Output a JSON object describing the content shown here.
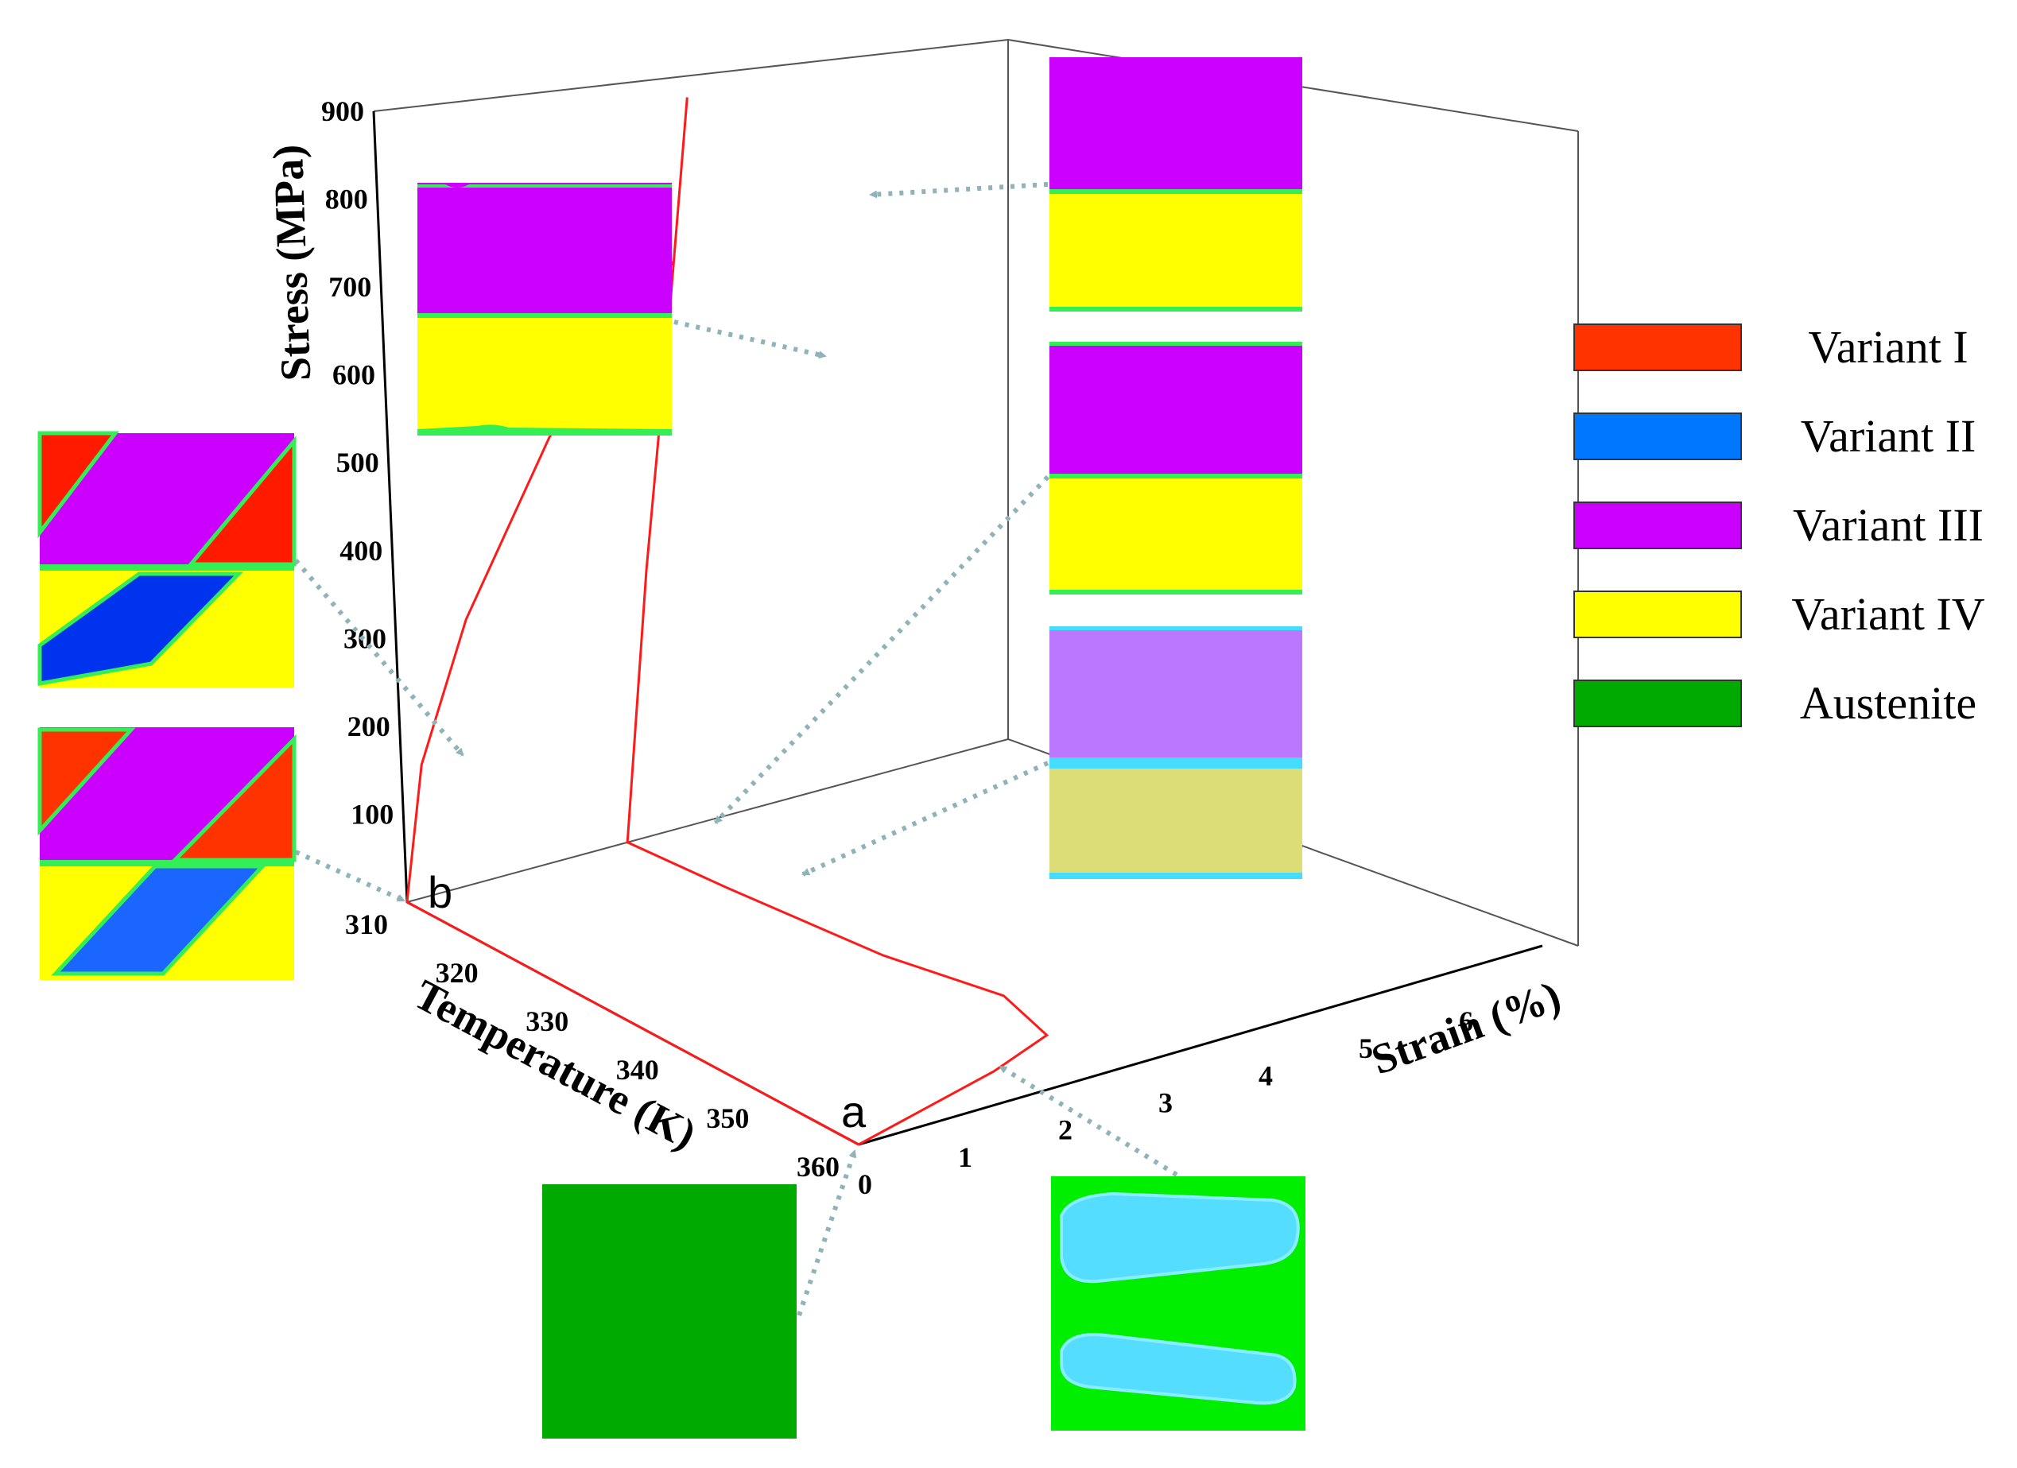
{
  "chart_data": {
    "type": "line",
    "subtype": "3d-line",
    "title": "",
    "axes": {
      "temperature": {
        "label": "Temperature (K)",
        "ticks": [
          "310",
          "320",
          "330",
          "340",
          "350",
          "360"
        ],
        "range": [
          310,
          360
        ]
      },
      "strain": {
        "label": "Strain (%)",
        "ticks": [
          "0",
          "1",
          "2",
          "3",
          "4",
          "5",
          "6"
        ],
        "range": [
          0,
          6
        ]
      },
      "stress": {
        "label": "Stress (MPa)",
        "ticks": [
          "100",
          "200",
          "300",
          "400",
          "500",
          "600",
          "700",
          "800",
          "900"
        ],
        "range": [
          0,
          900
        ]
      }
    },
    "point_labels": {
      "a": "a",
      "b": "b"
    },
    "series": [
      {
        "color": "#ff1a1a",
        "points": [
          {
            "temperature": 360,
            "strain": 0.0,
            "stress": 0
          },
          {
            "temperature": 355,
            "strain": 1.8,
            "stress": 0
          },
          {
            "temperature": 352,
            "strain": 2.6,
            "stress": 0
          },
          {
            "temperature": 345,
            "strain": 2.8,
            "stress": 0
          },
          {
            "temperature": 335,
            "strain": 2.5,
            "stress": 0
          },
          {
            "temperature": 320,
            "strain": 2.3,
            "stress": 0
          },
          {
            "temperature": 310,
            "strain": 2.2,
            "stress": 0
          },
          {
            "temperature": 310,
            "strain": 2.5,
            "stress": 300
          },
          {
            "temperature": 310,
            "strain": 2.8,
            "stress": 550
          },
          {
            "temperature": 310,
            "strain": 2.9,
            "stress": 640
          },
          {
            "temperature": 310,
            "strain": 3.1,
            "stress": 820
          },
          {
            "temperature": 310,
            "strain": 2.9,
            "stress": 640
          },
          {
            "temperature": 310,
            "strain": 2.5,
            "stress": 590
          },
          {
            "temperature": 310,
            "strain": 1.6,
            "stress": 480
          },
          {
            "temperature": 310,
            "strain": 0.7,
            "stress": 300
          },
          {
            "temperature": 310,
            "strain": 0.2,
            "stress": 150
          },
          {
            "temperature": 310,
            "strain": 0.0,
            "stress": 0
          },
          {
            "temperature": 360,
            "strain": 0.0,
            "stress": 0
          }
        ]
      }
    ],
    "legend": {
      "position": "right",
      "items": [
        {
          "label": "Variant I",
          "color": "#ff3300"
        },
        {
          "label": "Variant II",
          "color": "#0077ff"
        },
        {
          "label": "Variant III",
          "color": "#cc00ff"
        },
        {
          "label": "Variant IV",
          "color": "#ffff00"
        },
        {
          "label": "Austenite",
          "color": "#00aa00"
        }
      ]
    }
  },
  "colors": {
    "variant_1": "#ff3300",
    "variant_2": "#0066ff",
    "variant_3": "#cc00ff",
    "variant_4": "#ffff00",
    "austenite": "#00aa00",
    "bright_green": "#00ee00",
    "cyan": "#44ddff",
    "curve": "#ff1a1a",
    "arrow": "#8fb3b7"
  }
}
